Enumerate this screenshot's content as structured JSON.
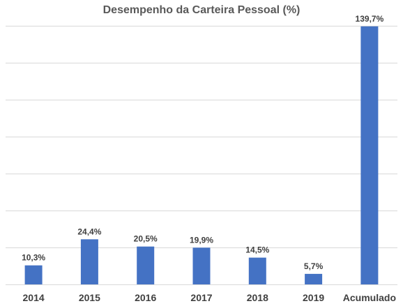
{
  "chart_data": {
    "type": "bar",
    "title": "Desempenho da Carteira Pessoal (%)",
    "xlabel": "",
    "ylabel": "",
    "categories": [
      "2014",
      "2015",
      "2016",
      "2017",
      "2018",
      "2019",
      "Acumulado"
    ],
    "values": [
      10.3,
      24.4,
      20.5,
      19.9,
      14.5,
      5.7,
      139.7
    ],
    "data_labels": [
      "10,3%",
      "24,4%",
      "20,5%",
      "19,9%",
      "14,5%",
      "5,7%",
      "139,7%"
    ],
    "ylim": [
      0,
      140
    ],
    "y_tick_step": 20,
    "y_tick_labels_visible": false,
    "grid": true,
    "legend": "none",
    "bar_color": "#4472c4",
    "grid_color": "#d9d9d9"
  }
}
